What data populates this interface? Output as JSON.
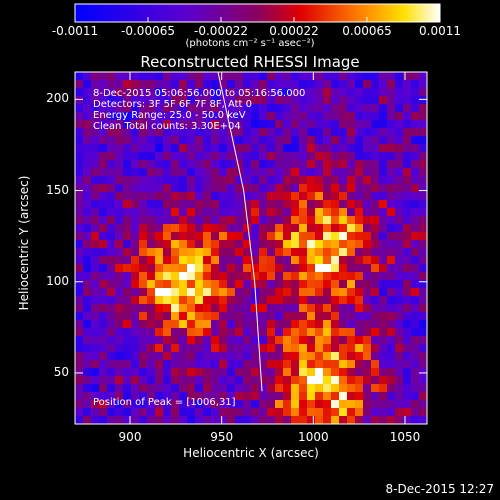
{
  "chart_data": {
    "type": "heatmap",
    "title": "Reconstructed RHESSI Image",
    "xlabel": "Heliocentric X (arcsec)",
    "ylabel": "Heliocentric Y (arcsec)",
    "xlim": [
      870,
      1062
    ],
    "ylim": [
      22,
      215
    ],
    "x_ticks": [
      900,
      950,
      1000,
      1050
    ],
    "y_ticks": [
      50,
      100,
      150,
      200
    ],
    "colorbar": {
      "range": [
        -0.0011,
        0.0011
      ],
      "ticks": [
        "-0.0011",
        "-0.00065",
        "-0.00022",
        "0.00022",
        "0.00065",
        "0.0011"
      ],
      "unit_label": "(photons cm⁻² s⁻¹ asec⁻²)"
    },
    "info_lines": [
      "8-Dec-2015 05:06:56.000 to 05:16:56.000",
      "Detectors: 3F 5F 6F 7F 8F, Att 0",
      "Energy Range: 25.0 - 50.0 keV",
      "Clean     Total counts: 3.30E+04"
    ],
    "peak_label": "Position of Peak = [1006,31]",
    "peak_position": [
      1006,
      31
    ],
    "sources": [
      {
        "x": 930,
        "y": 100,
        "amplitude": 1.0
      },
      {
        "x": 1005,
        "y": 120,
        "amplitude": 0.9
      },
      {
        "x": 1005,
        "y": 45,
        "amplitude": 1.0
      }
    ],
    "limb_line": [
      [
        948,
        215
      ],
      [
        962,
        150
      ],
      [
        968,
        100
      ],
      [
        972,
        40
      ]
    ]
  },
  "footer_timestamp": "8-Dec-2015 12:27"
}
